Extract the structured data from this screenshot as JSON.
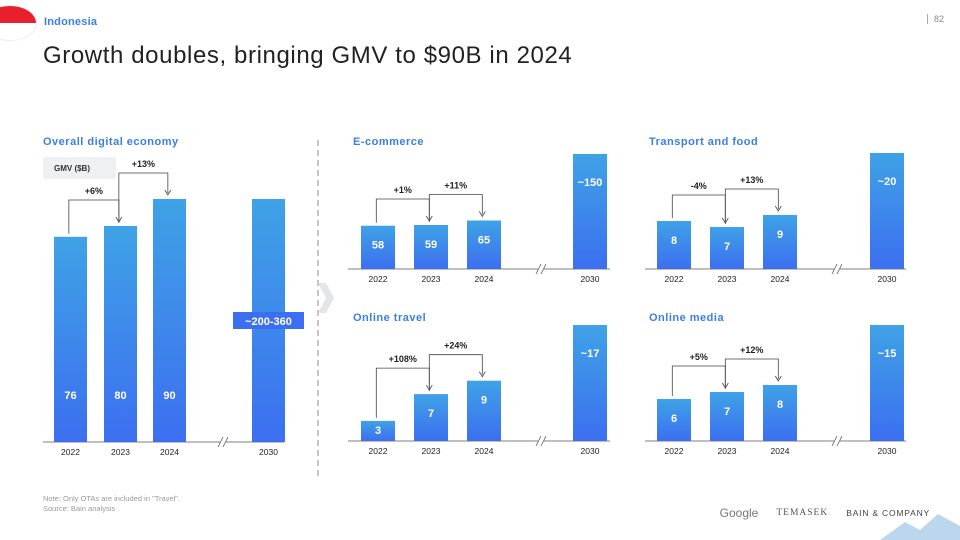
{
  "header": {
    "brand": "Indonesia",
    "page_number": "82",
    "title": "Growth doubles, bringing GMV to $90B in 2024"
  },
  "footer": {
    "note": "Note: Only OTAs are included in \"Travel\".",
    "source": "Source: Bain analysis",
    "logos": [
      "Google",
      "TEMASEK",
      "BAIN & COMPANY"
    ]
  },
  "colors": {
    "bar_top": "#3fa2e6",
    "bar_bottom": "#3c6ff0",
    "accent": "#3a7ee6"
  },
  "chart_data": [
    {
      "type": "bar",
      "title": "Overall digital economy",
      "ylabel": "GMV ($B)",
      "categories": [
        "2022",
        "2023",
        "2024",
        "2030"
      ],
      "values": [
        76,
        80,
        90,
        360
      ],
      "value_labels": [
        "76",
        "80",
        "90",
        "~200-360"
      ],
      "growth": [
        "+6%",
        "+13%"
      ],
      "axis_break_before": "2030"
    },
    {
      "type": "bar",
      "title": "E-commerce",
      "categories": [
        "2022",
        "2023",
        "2024",
        "2030"
      ],
      "values": [
        58,
        59,
        65,
        150
      ],
      "value_labels": [
        "58",
        "59",
        "65",
        "~150"
      ],
      "growth": [
        "+1%",
        "+11%"
      ],
      "axis_break_before": "2030"
    },
    {
      "type": "bar",
      "title": "Transport and food",
      "categories": [
        "2022",
        "2023",
        "2024",
        "2030"
      ],
      "values": [
        8,
        7,
        9,
        20
      ],
      "value_labels": [
        "8",
        "7",
        "9",
        "~20"
      ],
      "growth": [
        "-4%",
        "+13%"
      ],
      "axis_break_before": "2030"
    },
    {
      "type": "bar",
      "title": "Online travel",
      "categories": [
        "2022",
        "2023",
        "2024",
        "2030"
      ],
      "values": [
        3,
        7,
        9,
        17
      ],
      "value_labels": [
        "3",
        "7",
        "9",
        "~17"
      ],
      "growth": [
        "+108%",
        "+24%"
      ],
      "axis_break_before": "2030"
    },
    {
      "type": "bar",
      "title": "Online media",
      "categories": [
        "2022",
        "2023",
        "2024",
        "2030"
      ],
      "values": [
        6,
        7,
        8,
        15
      ],
      "value_labels": [
        "6",
        "7",
        "8",
        "~15"
      ],
      "growth": [
        "+5%",
        "+12%"
      ],
      "axis_break_before": "2030"
    }
  ]
}
